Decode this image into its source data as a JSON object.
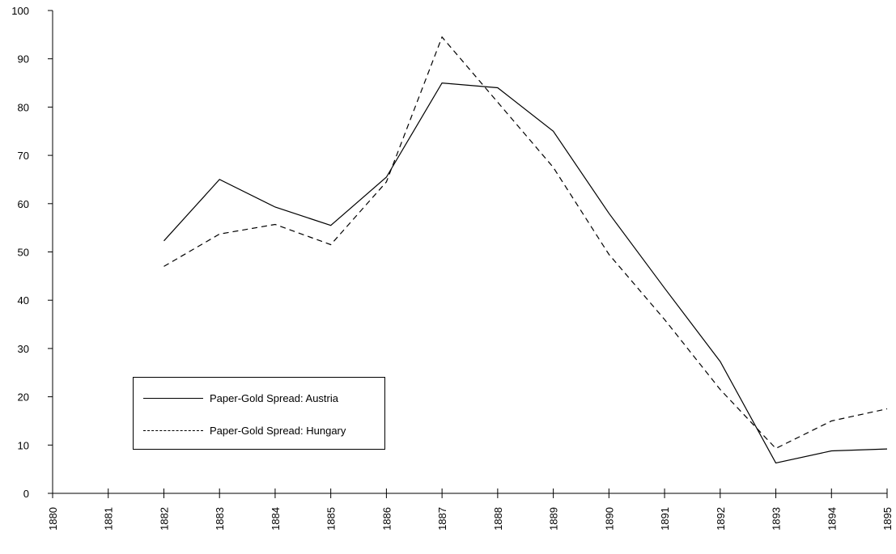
{
  "chart_data": {
    "type": "line",
    "title": "",
    "xlabel": "",
    "ylabel": "",
    "x": [
      1880,
      1881,
      1882,
      1883,
      1884,
      1885,
      1886,
      1887,
      1888,
      1889,
      1890,
      1891,
      1892,
      1893,
      1894,
      1895
    ],
    "x_tick_labels": [
      "1880",
      "1881",
      "1882",
      "1883",
      "1884",
      "1885",
      "1886",
      "1887",
      "1888",
      "1889",
      "1890",
      "1891",
      "1892",
      "1893",
      "1894",
      "1895"
    ],
    "ylim": [
      0,
      100
    ],
    "y_ticks": [
      0,
      10,
      20,
      30,
      40,
      50,
      60,
      70,
      80,
      90,
      100
    ],
    "y_tick_labels": [
      "0",
      "10",
      "20",
      "30",
      "40",
      "50",
      "60",
      "70",
      "80",
      "90",
      "100"
    ],
    "grid": false,
    "legend_position": "lower-left",
    "series": [
      {
        "name": "Paper-Gold Spread: Austria",
        "style": "solid",
        "color": "#000000",
        "x": [
          1882,
          1883,
          1884,
          1885,
          1886,
          1887,
          1888,
          1889,
          1890,
          1891,
          1892,
          1893,
          1894,
          1895
        ],
        "values": [
          52.3,
          65.0,
          59.3,
          55.5,
          65.5,
          85.0,
          84.0,
          75.0,
          58.0,
          42.5,
          27.3,
          6.3,
          8.8,
          9.2
        ]
      },
      {
        "name": "Paper-Gold Spread: Hungary",
        "style": "dashed",
        "color": "#000000",
        "x": [
          1882,
          1883,
          1884,
          1885,
          1886,
          1887,
          1888,
          1889,
          1890,
          1891,
          1892,
          1893,
          1894,
          1895
        ],
        "values": [
          47.0,
          53.7,
          55.7,
          51.5,
          64.5,
          94.5,
          81.0,
          67.5,
          49.5,
          36.0,
          21.5,
          9.3,
          15.0,
          17.5
        ]
      }
    ]
  }
}
